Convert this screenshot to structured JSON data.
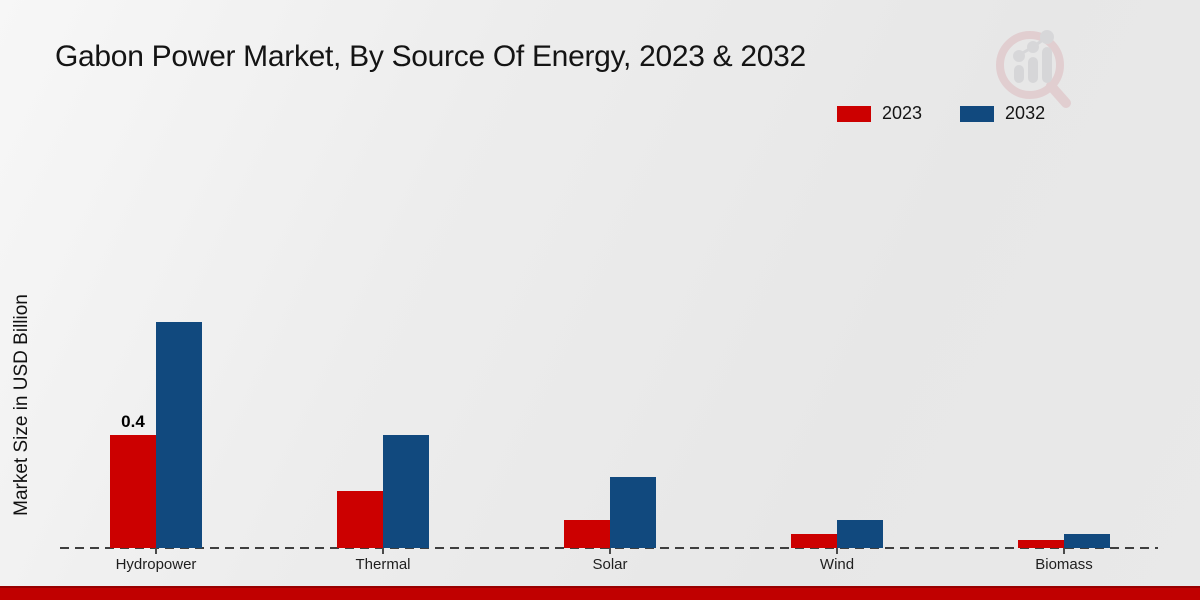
{
  "page": {
    "title": "Gabon Power Market, By Source Of Energy, 2023 & 2032"
  },
  "watermark": {
    "icon": "magnifier-bar-chart-logo"
  },
  "colors": {
    "series_2023_red": "#cc0000",
    "series_2032_blue": "#11497e",
    "baseline_gray": "#3f3f3f",
    "footer_red": "#c00000",
    "footer_red_dark": "#980000",
    "background_gray": "#ebebeb"
  },
  "chart_data": {
    "type": "bar",
    "title": "Gabon Power Market, By Source Of Energy, 2023 & 2032",
    "xlabel": "",
    "ylabel": "Market Size in USD Billion",
    "categories": [
      "Hydropower",
      "Thermal",
      "Solar",
      "Wind",
      "Biomass"
    ],
    "series": [
      {
        "name": "2023",
        "color": "#cc0000",
        "values": [
          0.4,
          0.2,
          0.1,
          0.05,
          0.03
        ]
      },
      {
        "name": "2032",
        "color": "#11497e",
        "values": [
          0.8,
          0.4,
          0.25,
          0.1,
          0.05
        ]
      }
    ],
    "data_labels": [
      {
        "category_index": 0,
        "series_index": 0,
        "text": "0.4"
      }
    ],
    "ylim": [
      0,
      0.9
    ],
    "grid": false,
    "legend_position": "top-right",
    "x_axis_style": "dashed-baseline",
    "y_axis_ticks": "none"
  }
}
